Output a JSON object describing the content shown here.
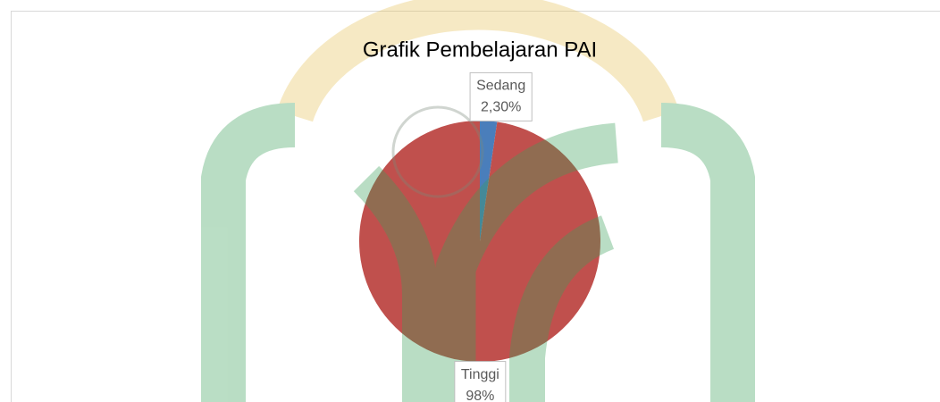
{
  "chart_data": {
    "type": "pie",
    "title": "Grafik Pembelajaran PAI",
    "categories": [
      "Sedang",
      "Tinggi"
    ],
    "values": [
      2.3,
      98
    ],
    "value_labels": [
      "2,30%",
      "98%"
    ],
    "colors": [
      "#4a7ebb",
      "#c0504d"
    ]
  }
}
